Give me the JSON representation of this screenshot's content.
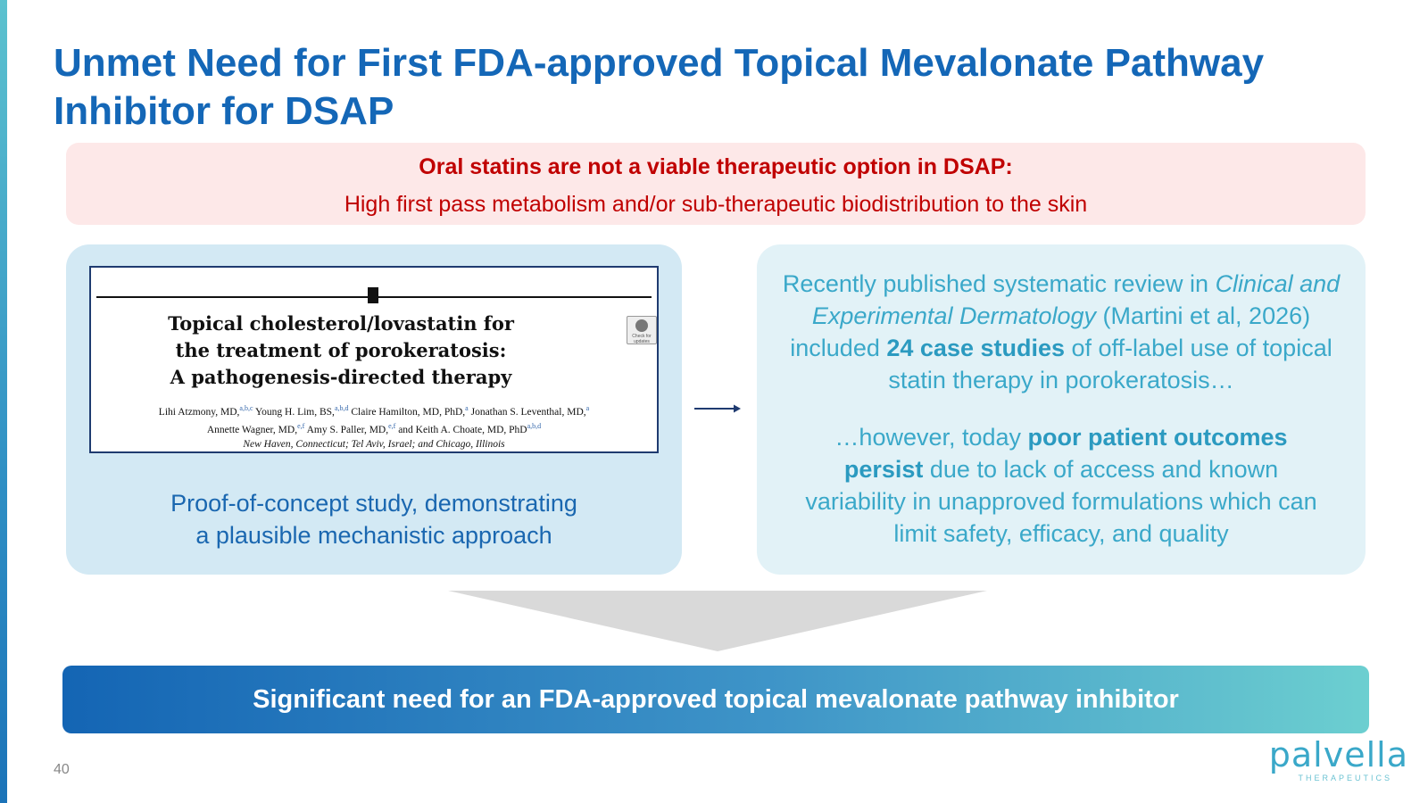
{
  "slide": {
    "title": "Unmet Need for First FDA-approved Topical Mevalonate Pathway Inhibitor for DSAP",
    "page_number": "40"
  },
  "banner": {
    "heading": "Oral statins are not a viable therapeutic option in DSAP:",
    "subtext": "High first pass metabolism and/or sub-therapeutic biodistribution to the skin"
  },
  "left_panel": {
    "paper": {
      "title_lines": [
        "Topical cholesterol/lovastatin for",
        "the treatment of porokeratosis:",
        "A pathogenesis-directed therapy"
      ],
      "check_badge": "Check for updates",
      "authors": [
        {
          "name": "Lihi Atzmony, MD,",
          "sup": "a,b,c"
        },
        {
          "name": "Young H. Lim, BS,",
          "sup": "a,b,d"
        },
        {
          "name": "Claire Hamilton, MD, PhD,",
          "sup": "a"
        },
        {
          "name": "Jonathan S. Leventhal, MD,",
          "sup": "a"
        },
        {
          "name": "Annette Wagner, MD,",
          "sup": "e,f"
        },
        {
          "name": "Amy S. Paller, MD,",
          "sup": "e,f"
        },
        {
          "name": "and Keith A. Choate, MD, PhD",
          "sup": "a,b,d"
        }
      ],
      "location": "New Haven, Connecticut; Tel Aviv, Israel; and Chicago, Illinois"
    },
    "caption_line1": "Proof-of-concept study, demonstrating",
    "caption_line2": "a plausible mechanistic approach"
  },
  "right_panel": {
    "p1_a": "Recently published systematic review in ",
    "p1_journal": "Clinical and Experimental Dermatology",
    "p1_b": " (Martini et al, 2026) included ",
    "p1_bold": "24 case studies",
    "p1_c": " of off-label use of topical statin therapy in porokeratosis…",
    "p2_a": "…however, today ",
    "p2_bold": "poor patient outcomes persist",
    "p2_b": " due to lack of access and known variability in unapproved formulations which can limit safety, efficacy, and quality"
  },
  "conclusion": {
    "text": "Significant need for an FDA-approved topical mevalonate pathway inhibitor"
  },
  "logo": {
    "wordmark": "palvella",
    "tagline": "THERAPEUTICS"
  },
  "colors": {
    "title": "#1467b7",
    "alert_red": "#c00000",
    "alert_bg": "#fde8e8",
    "teal_text": "#3aa8c9"
  }
}
